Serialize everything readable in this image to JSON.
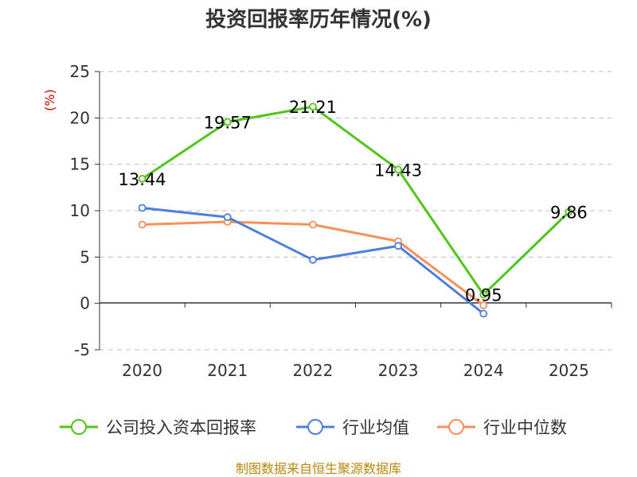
{
  "chart_data": {
    "type": "line",
    "title": "投资回报率历年情况(%)",
    "ylabel": "(%)",
    "categories": [
      "2020",
      "2021",
      "2022",
      "2023",
      "2024",
      "2025"
    ],
    "ylim": [
      -5,
      25
    ],
    "yticks": [
      "25",
      "20",
      "15",
      "10",
      "5",
      "0",
      "-5"
    ],
    "grid": true,
    "legend_position": "bottom",
    "series": [
      {
        "name": "公司投入资本回报率",
        "color": "#52c41a",
        "values": [
          13.44,
          19.57,
          21.21,
          14.43,
          0.95,
          9.86
        ],
        "labels": [
          "13.44",
          "19.57",
          "21.21",
          "14.43",
          "0.95",
          "9.86"
        ]
      },
      {
        "name": "行业均值",
        "color": "#4e7fdc",
        "values": [
          10.3,
          9.3,
          4.7,
          6.2,
          -1.1,
          null
        ]
      },
      {
        "name": "行业中位数",
        "color": "#f7905a",
        "values": [
          8.5,
          8.8,
          8.5,
          6.7,
          -0.2,
          null
        ]
      }
    ],
    "source": "制图数据来自恒生聚源数据库"
  }
}
